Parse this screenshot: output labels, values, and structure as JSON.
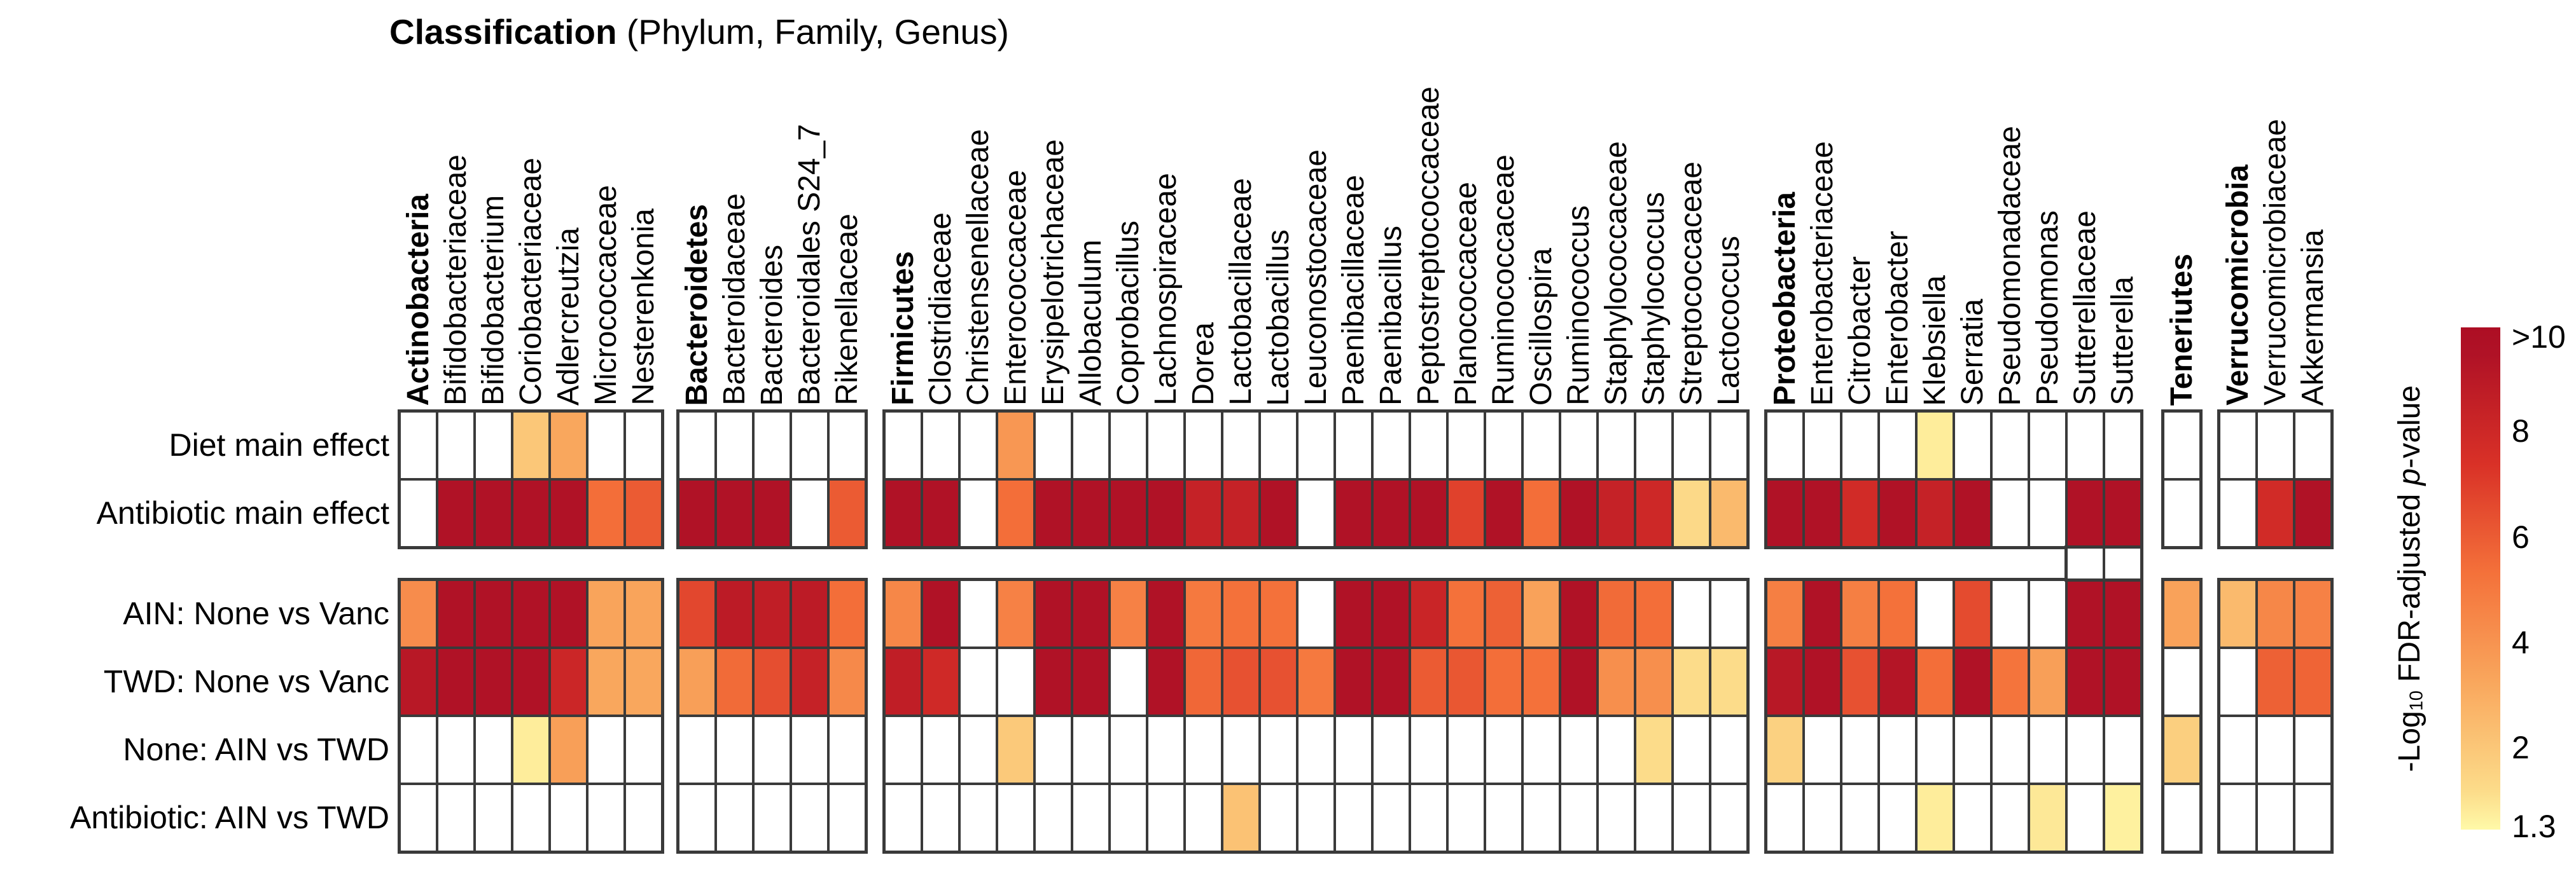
{
  "figure_title": {
    "bold": "Classification",
    "rest": " (Phylum, Family, Genus)"
  },
  "legend": {
    "ticks": [
      ">10",
      "8",
      "6",
      "4",
      "2",
      "1.3"
    ],
    "title": {
      "prefix": "-Log",
      "subscript": "10",
      "middle": " FDR-adjusted ",
      "italic": "p",
      "suffix": "-value"
    }
  },
  "chart_data": {
    "type": "heatmap",
    "title": "Classification (Phylum, Family, Genus)",
    "rows": [
      "Diet main effect",
      "Antibiotic main effect",
      "AIN: None vs Vanc",
      "TWD: None vs Vanc",
      "None: AIN vs TWD",
      "Antibiotic: AIN vs TWD"
    ],
    "row_gap_after": "Antibiotic main effect",
    "value_scale": {
      "label": "-Log10 FDR-adjusted p-value",
      "min": 1.3,
      "max": 10,
      "max_label": ">10",
      "na_color": "#FFFFFF",
      "colormap_stops": [
        [
          1.3,
          "#FFF9A8"
        ],
        [
          2,
          "#FCDC8A"
        ],
        [
          4,
          "#F9A75D"
        ],
        [
          6,
          "#F4713A"
        ],
        [
          8,
          "#D93127"
        ],
        [
          10,
          "#B01226"
        ]
      ]
    },
    "groups": [
      {
        "phylum": "Actinobacteria",
        "columns": [
          {
            "label": "Actinobacteria",
            "bold": true
          },
          {
            "label": "Bifidobacteriaceae",
            "bold": false
          },
          {
            "label": "Bifidobacterium",
            "bold": false
          },
          {
            "label": "Coriobacteriaceae",
            "bold": false
          },
          {
            "label": "Adlercreutzia",
            "bold": false
          },
          {
            "label": "Micrococcaceae",
            "bold": false
          },
          {
            "label": "Nesterenkonia",
            "bold": false
          }
        ],
        "values": [
          [
            null,
            null,
            null,
            2.8,
            4,
            null,
            null
          ],
          [
            null,
            10,
            10,
            10,
            10,
            6.1,
            6.7
          ],
          [
            5,
            10,
            10,
            10,
            10,
            4.1,
            4.1
          ],
          [
            9.6,
            10,
            10,
            10,
            8.7,
            4,
            4
          ],
          [
            null,
            null,
            null,
            1.6,
            4.3,
            null,
            null
          ],
          [
            null,
            null,
            null,
            null,
            null,
            null,
            null
          ]
        ]
      },
      {
        "phylum": "Bacteroidetes",
        "columns": [
          {
            "label": "Bacteroidetes",
            "bold": true
          },
          {
            "label": "Bacteroidaceae",
            "bold": false
          },
          {
            "label": "Bacteroides",
            "bold": false
          },
          {
            "label": "Bacteroidales S24_7",
            "bold": false
          },
          {
            "label": "Rikenellaceae",
            "bold": false
          }
        ],
        "values": [
          [
            null,
            null,
            null,
            null,
            null
          ],
          [
            10,
            10,
            10,
            null,
            6.7
          ],
          [
            7.3,
            9.4,
            9.2,
            9.4,
            6.1
          ],
          [
            4.3,
            6.2,
            7.1,
            9,
            5.1
          ],
          [
            null,
            null,
            null,
            null,
            null
          ],
          [
            null,
            null,
            null,
            null,
            null
          ]
        ]
      },
      {
        "phylum": "Firmicutes",
        "columns": [
          {
            "label": "Firmicutes",
            "bold": true
          },
          {
            "label": "Clostridiaceae",
            "bold": false
          },
          {
            "label": "Christensenellaceae",
            "bold": false
          },
          {
            "label": "Enterococcaceae",
            "bold": false
          },
          {
            "label": "Erysipelotrichaceae",
            "bold": false
          },
          {
            "label": "Allobaculum",
            "bold": false
          },
          {
            "label": "Coprobacillus",
            "bold": false
          },
          {
            "label": "Lachnospiraceae",
            "bold": false
          },
          {
            "label": "Dorea",
            "bold": false
          },
          {
            "label": "Lactobacillaceae",
            "bold": false
          },
          {
            "label": "Lactobacillus",
            "bold": false
          },
          {
            "label": "Leuconostocaceae",
            "bold": false
          },
          {
            "label": "Paenibacillaceae",
            "bold": false
          },
          {
            "label": "Paenibacillus",
            "bold": false
          },
          {
            "label": "Peptostreptococcaceae",
            "bold": false
          },
          {
            "label": "Planococcaceae",
            "bold": false
          },
          {
            "label": "Ruminococcaceae",
            "bold": false
          },
          {
            "label": "Oscillospira",
            "bold": false
          },
          {
            "label": "Ruminococcus",
            "bold": false
          },
          {
            "label": "Staphylococcaceae",
            "bold": false
          },
          {
            "label": "Staphylococcus",
            "bold": false
          },
          {
            "label": "Streptococcaceae",
            "bold": false
          },
          {
            "label": "Lactococcus",
            "bold": false
          }
        ],
        "values": [
          [
            null,
            null,
            null,
            4.6,
            null,
            null,
            null,
            null,
            null,
            null,
            null,
            null,
            null,
            null,
            null,
            null,
            null,
            null,
            null,
            null,
            null,
            null,
            null
          ],
          [
            10,
            10,
            null,
            6.1,
            10,
            10,
            10,
            10,
            9,
            9,
            10,
            null,
            10,
            10,
            10,
            7.5,
            10,
            6.1,
            10,
            9,
            8.6,
            2.1,
            3.3
          ],
          [
            5.2,
            10,
            null,
            5.4,
            10,
            10,
            5.4,
            10,
            5.7,
            6,
            6,
            null,
            10,
            10,
            8.8,
            6,
            6.5,
            4.2,
            10,
            6.2,
            6.1,
            null,
            null
          ],
          [
            9.2,
            8.5,
            null,
            null,
            10,
            10,
            null,
            10,
            6.3,
            7,
            7,
            5.7,
            10,
            10,
            6.7,
            6.8,
            6.1,
            6,
            10,
            4.9,
            4.9,
            2,
            2
          ],
          [
            null,
            null,
            null,
            2.7,
            null,
            null,
            null,
            null,
            null,
            null,
            null,
            null,
            null,
            null,
            null,
            null,
            null,
            null,
            null,
            null,
            2,
            null,
            null
          ],
          [
            null,
            null,
            null,
            null,
            null,
            null,
            null,
            null,
            null,
            3,
            null,
            null,
            null,
            null,
            null,
            null,
            null,
            null,
            null,
            null,
            null,
            null,
            null
          ]
        ]
      },
      {
        "phylum": "Proteobacteria",
        "columns": [
          {
            "label": "Proteobacteria",
            "bold": true
          },
          {
            "label": "Enterobacteriaceae",
            "bold": false
          },
          {
            "label": "Citrobacter",
            "bold": false
          },
          {
            "label": "Enterobacter",
            "bold": false
          },
          {
            "label": "Klebsiella",
            "bold": false
          },
          {
            "label": "Serratia",
            "bold": false
          },
          {
            "label": "Pseudomonadaceae",
            "bold": false
          },
          {
            "label": "Pseudomonas",
            "bold": false
          },
          {
            "label": "Sutterellaceae",
            "bold": false
          },
          {
            "label": "Sutterella",
            "bold": false
          }
        ],
        "values": [
          [
            null,
            null,
            null,
            null,
            1.6,
            null,
            null,
            null,
            null,
            null
          ],
          [
            10,
            10,
            8.4,
            10,
            9,
            10,
            null,
            null,
            10,
            10
          ],
          [
            5.5,
            10,
            5.5,
            6,
            null,
            7.2,
            null,
            null,
            10,
            10
          ],
          [
            9.6,
            10,
            7,
            9.8,
            6.1,
            10,
            5.9,
            4.3,
            10,
            10
          ],
          [
            2.4,
            null,
            null,
            null,
            null,
            null,
            null,
            null,
            null,
            null
          ],
          [
            null,
            null,
            null,
            null,
            1.6,
            null,
            null,
            1.7,
            null,
            1.5
          ]
        ]
      },
      {
        "phylum": "Teneriutes",
        "columns": [
          {
            "label": "Teneriutes",
            "bold": true
          }
        ],
        "values": [
          [
            null
          ],
          [
            null
          ],
          [
            4.2
          ],
          [
            null
          ],
          [
            2.5
          ],
          [
            null
          ]
        ]
      },
      {
        "phylum": "Verrucomicrobia",
        "columns": [
          {
            "label": "Verrucomicrobia",
            "bold": true
          },
          {
            "label": "Verrucomicrobiaceae",
            "bold": false
          },
          {
            "label": "Akkermansia",
            "bold": false
          }
        ],
        "values": [
          [
            null,
            null,
            null
          ],
          [
            null,
            8.4,
            10
          ],
          [
            3.3,
            5.2,
            5.4
          ],
          [
            null,
            6.5,
            6.4
          ],
          [
            null,
            null,
            null
          ],
          [
            null,
            null,
            null
          ]
        ]
      }
    ],
    "gap_bridge_cells": {
      "group": "Proteobacteria",
      "columns": [
        "Sutterellaceae",
        "Sutterella"
      ],
      "between_rows": [
        "Antibiotic main effect",
        "AIN: None vs Vanc"
      ],
      "color": "#FFFFFF"
    }
  }
}
